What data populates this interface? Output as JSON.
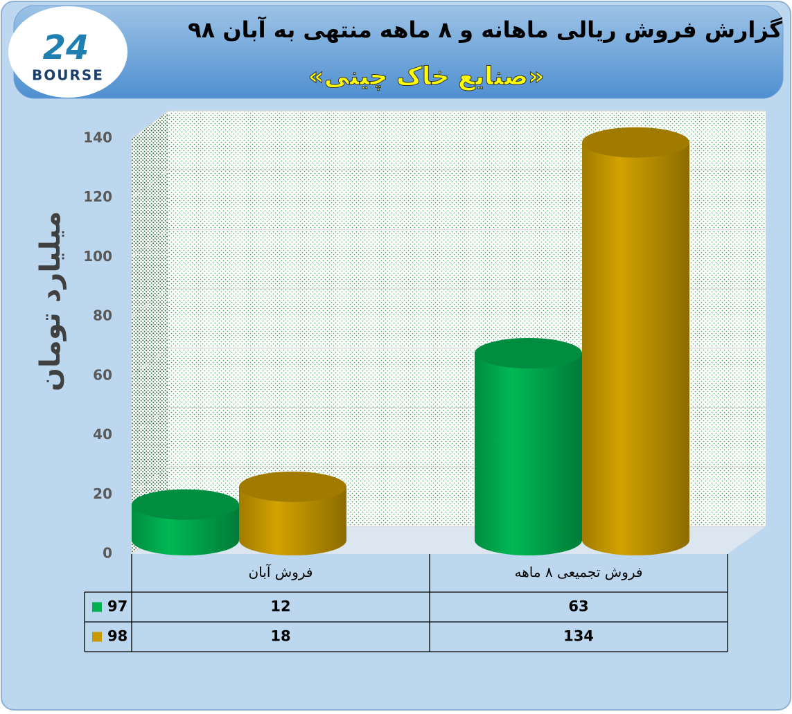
{
  "logo": {
    "mark": "24",
    "name": "BOURSE"
  },
  "chart_data": {
    "type": "bar",
    "title": "گزارش فروش ریالی ماهانه و ۸ ماهه منتهی به آبان ۹۸",
    "subtitle": "«صنایع خاک چینی»",
    "y_label": "میلیارد تومان",
    "categories": [
      "فروش آبان",
      "فروش تجمیعی ۸ ماهه"
    ],
    "series": [
      {
        "name": "97",
        "color": "#00b050",
        "values": [
          12,
          63
        ]
      },
      {
        "name": "98",
        "color": "#c89a00",
        "values": [
          18,
          134
        ]
      }
    ],
    "ylim": [
      0,
      140
    ],
    "yticks": [
      0,
      20,
      40,
      60,
      80,
      100,
      120,
      140
    ],
    "grid": true,
    "data_table": true
  }
}
